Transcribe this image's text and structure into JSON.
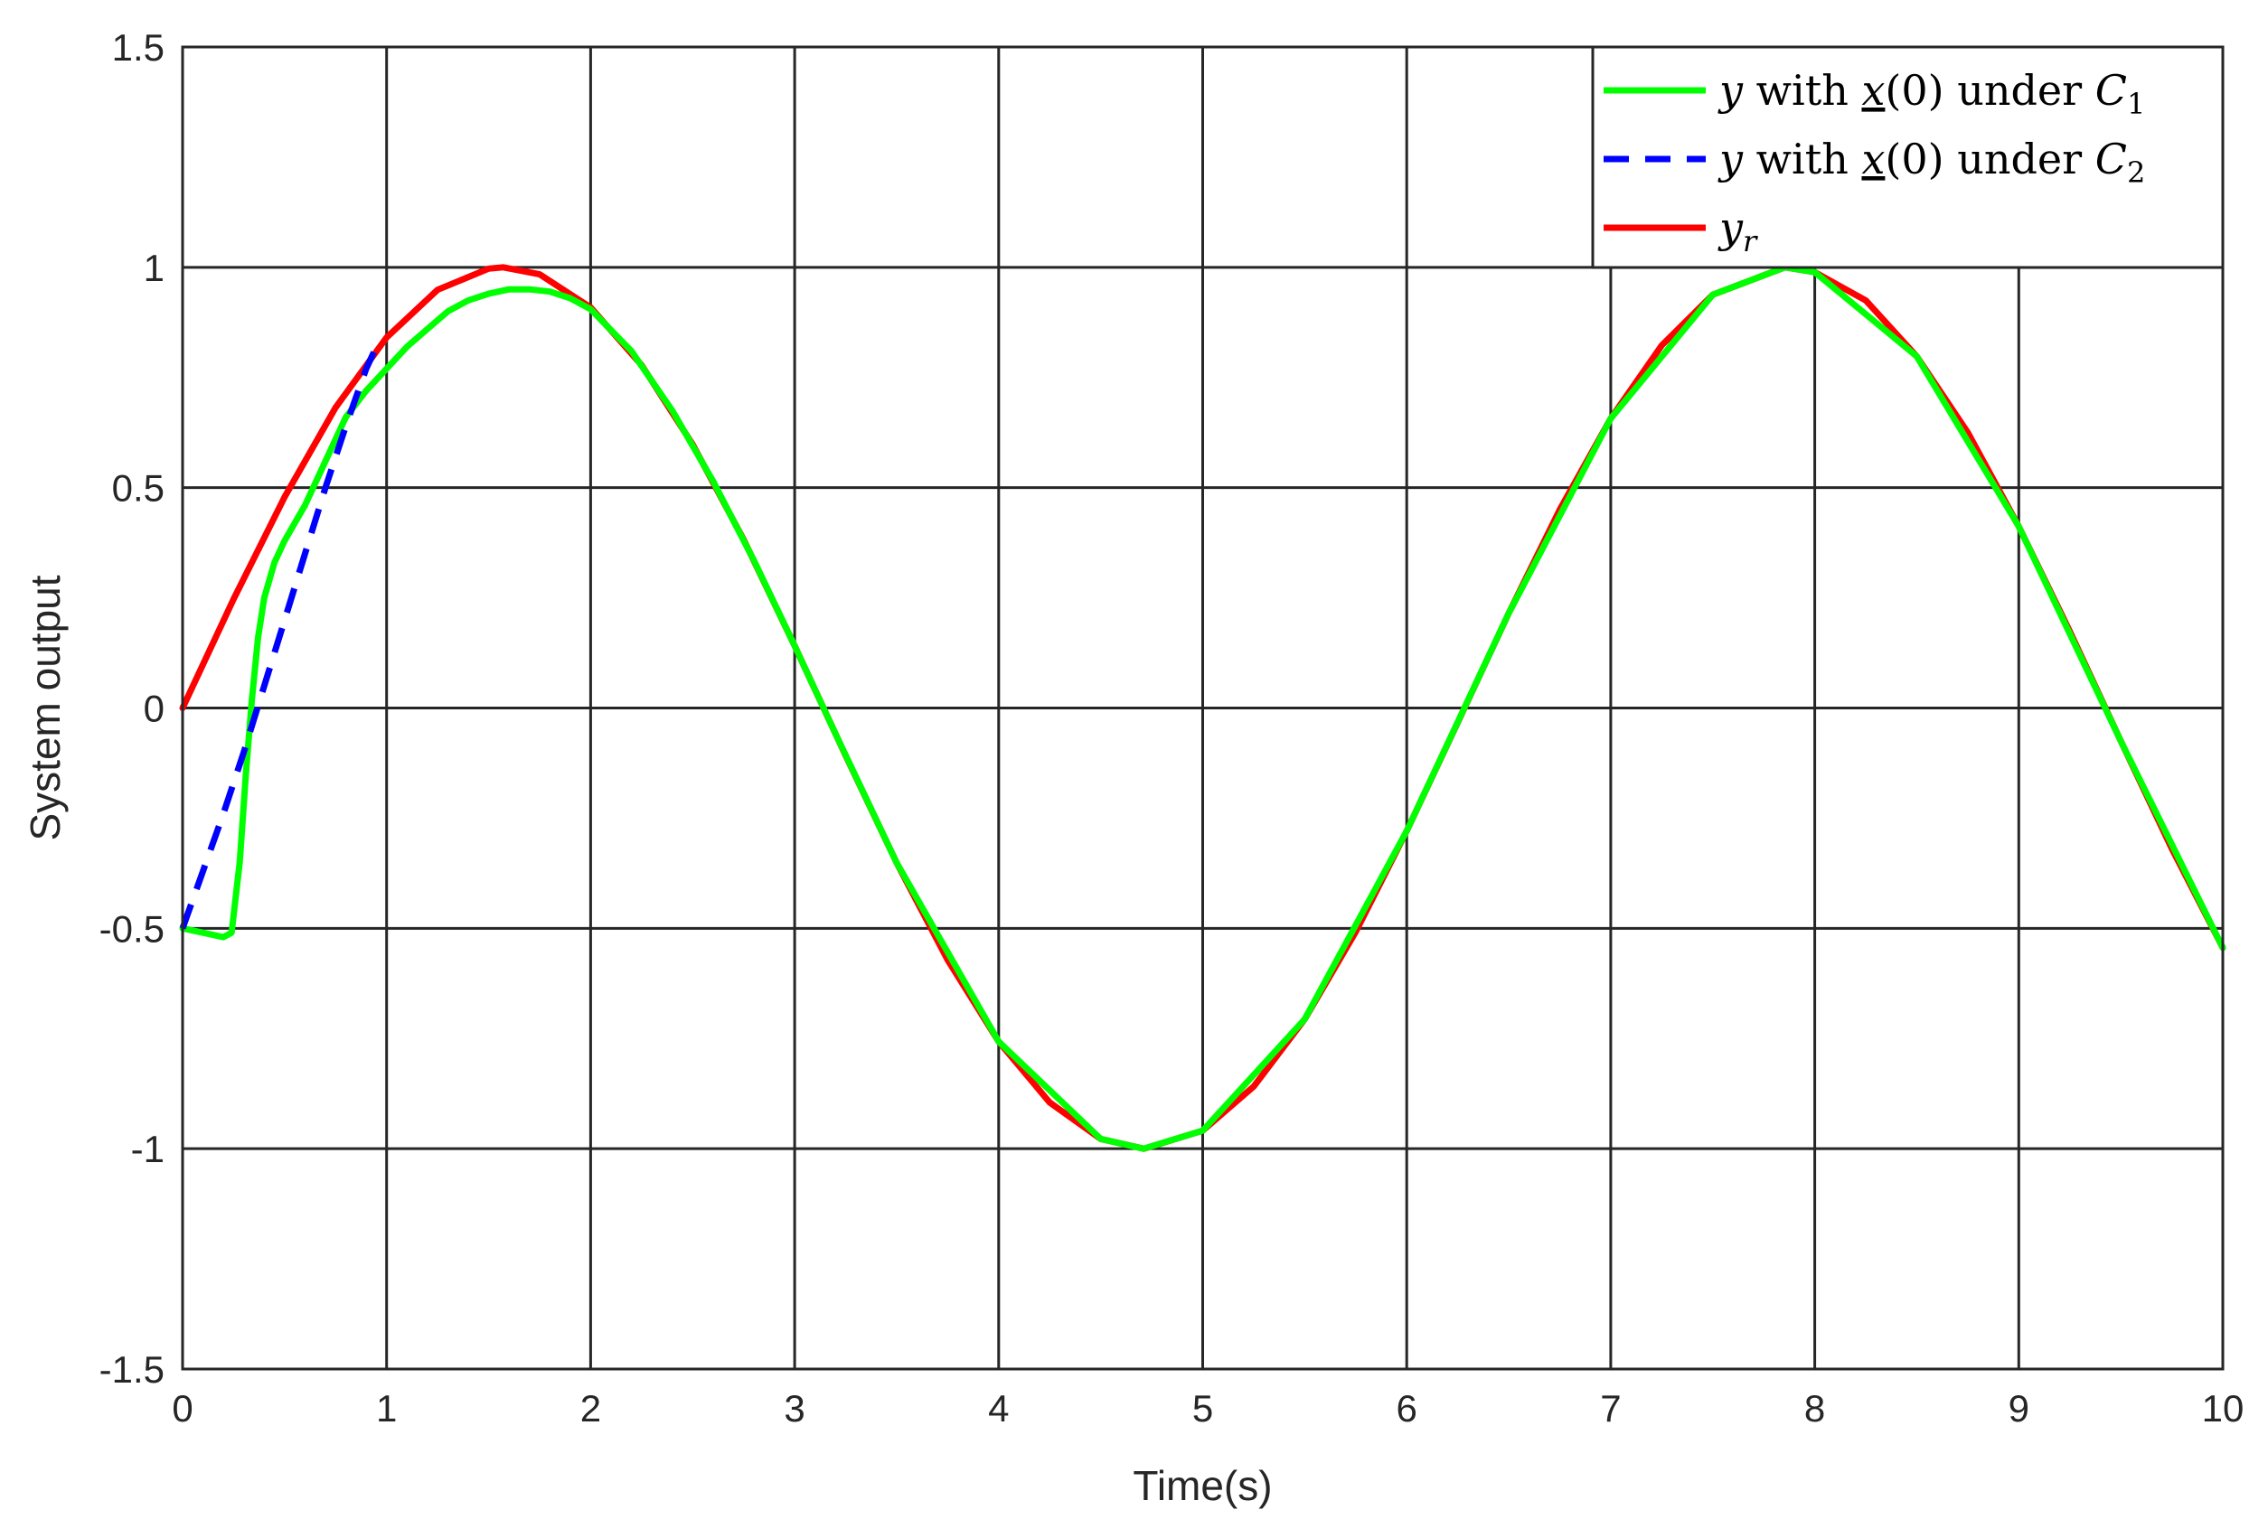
{
  "chart_data": {
    "type": "line",
    "title": "",
    "xlabel": "Time(s)",
    "ylabel": "System output",
    "xlim": [
      0,
      10
    ],
    "ylim": [
      -1.5,
      1.5
    ],
    "xticks": [
      0,
      1,
      2,
      3,
      4,
      5,
      6,
      7,
      8,
      9,
      10
    ],
    "yticks": [
      -1.5,
      -1,
      -0.5,
      0,
      0.5,
      1,
      1.5
    ],
    "xtick_labels": [
      "0",
      "1",
      "2",
      "3",
      "4",
      "5",
      "6",
      "7",
      "8",
      "9",
      "10"
    ],
    "ytick_labels": [
      "-1.5",
      "-1",
      "-0.5",
      "0",
      "0.5",
      "1",
      "1.5"
    ],
    "grid": true,
    "legend_position": "top-right",
    "series": [
      {
        "name": "y with x(0) under C1",
        "legend": {
          "var": "y",
          "mid": " with ",
          "ul": "x",
          "paren": "(0) under ",
          "sym": "C",
          "sub": "1"
        },
        "color": "#00ff00",
        "style": "solid",
        "x": [
          0,
          0.1,
          0.2,
          0.24,
          0.28,
          0.31,
          0.34,
          0.37,
          0.4,
          0.45,
          0.5,
          0.55,
          0.6,
          0.7,
          0.8,
          0.9,
          1.0,
          1.1,
          1.2,
          1.3,
          1.4,
          1.5,
          1.6,
          1.7,
          1.8,
          1.9,
          2.0,
          2.2,
          2.4,
          2.6,
          2.8,
          3.0,
          3.2,
          3.5,
          4.0,
          4.5,
          4.71,
          5.0,
          5.5,
          6.0,
          6.5,
          7.0,
          7.5,
          7.854,
          8.0,
          8.5,
          9.0,
          9.5,
          10.0
        ],
        "y": [
          -0.5,
          -0.51,
          -0.52,
          -0.51,
          -0.35,
          -0.15,
          0.02,
          0.16,
          0.25,
          0.33,
          0.38,
          0.42,
          0.46,
          0.56,
          0.66,
          0.72,
          0.77,
          0.82,
          0.86,
          0.9,
          0.925,
          0.94,
          0.95,
          0.95,
          0.945,
          0.93,
          0.905,
          0.81,
          0.675,
          0.515,
          0.335,
          0.141,
          -0.058,
          -0.351,
          -0.757,
          -0.978,
          -1.0,
          -0.959,
          -0.706,
          -0.279,
          0.215,
          0.657,
          0.938,
          1.0,
          0.989,
          0.798,
          0.412,
          -0.075,
          -0.544
        ]
      },
      {
        "name": "y with x(0) under C2",
        "legend": {
          "var": "y",
          "mid": " with ",
          "ul": "x",
          "paren": "(0) under ",
          "sym": "C",
          "sub": "2"
        },
        "color": "#0000ff",
        "style": "dashed",
        "x": [
          0,
          0.1,
          0.2,
          0.3,
          0.4,
          0.5,
          0.6,
          0.7,
          0.8,
          0.9,
          0.97
        ],
        "y": [
          -0.5,
          -0.37,
          -0.24,
          -0.1,
          0.05,
          0.2,
          0.35,
          0.5,
          0.64,
          0.77,
          0.84
        ]
      },
      {
        "name": "y_r",
        "legend": {
          "var": "y",
          "sub": "r"
        },
        "color": "#ff0000",
        "style": "solid",
        "x": [
          0,
          0.25,
          0.5,
          0.75,
          1.0,
          1.25,
          1.5,
          1.571,
          1.75,
          2.0,
          2.25,
          2.5,
          2.75,
          3.0,
          3.25,
          3.5,
          3.75,
          4.0,
          4.25,
          4.5,
          4.712,
          5.0,
          5.25,
          5.5,
          5.75,
          6.0,
          6.25,
          6.5,
          6.75,
          7.0,
          7.25,
          7.5,
          7.854,
          8.0,
          8.25,
          8.5,
          8.75,
          9.0,
          9.25,
          9.5,
          9.75,
          10.0
        ],
        "y": [
          0,
          0.247,
          0.479,
          0.682,
          0.841,
          0.949,
          0.997,
          1.0,
          0.984,
          0.909,
          0.778,
          0.598,
          0.382,
          0.141,
          -0.108,
          -0.351,
          -0.572,
          -0.757,
          -0.895,
          -0.978,
          -1.0,
          -0.959,
          -0.859,
          -0.706,
          -0.508,
          -0.279,
          -0.033,
          0.215,
          0.45,
          0.657,
          0.823,
          0.938,
          1.0,
          0.989,
          0.925,
          0.798,
          0.625,
          0.412,
          0.174,
          -0.075,
          -0.319,
          -0.544
        ]
      }
    ]
  }
}
